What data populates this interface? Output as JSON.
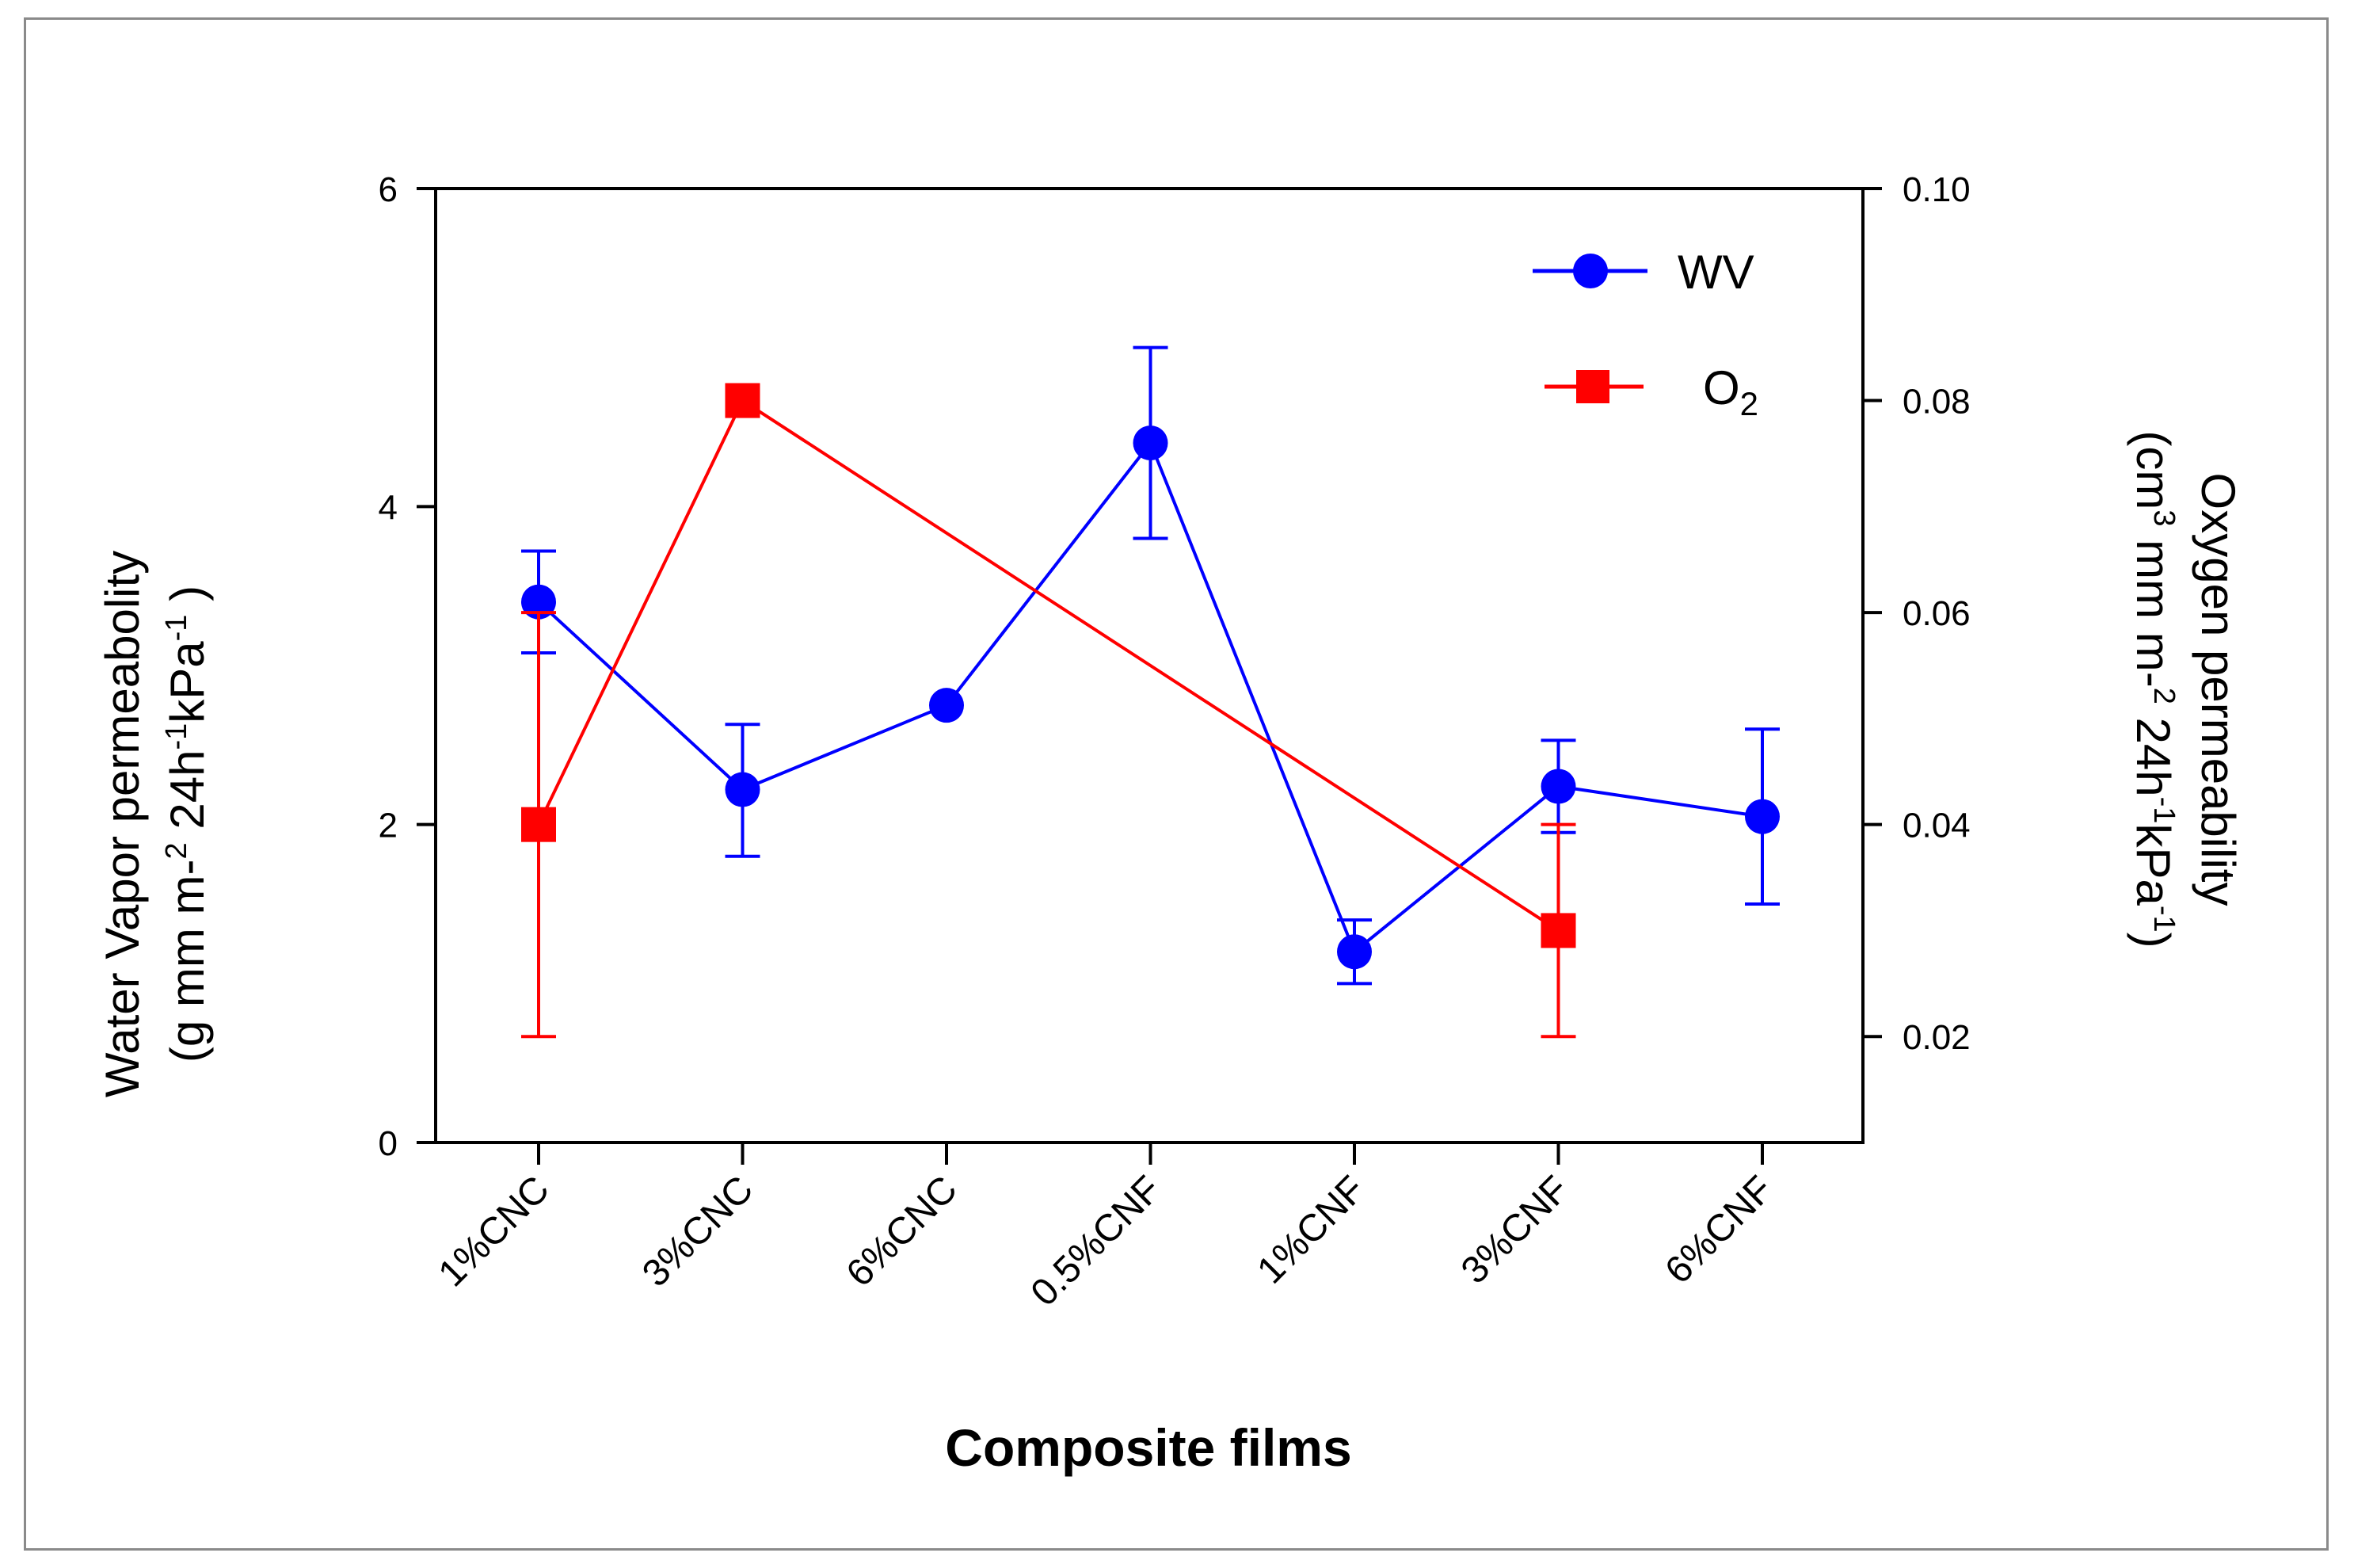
{
  "chart_data": {
    "type": "line",
    "title": "",
    "xlabel": "Composite films",
    "ylabel_left": {
      "line1": "Water Vapor permeabolity",
      "line2_parts": [
        "(g mm m-",
        "2",
        " 24h",
        "-1",
        "kPa",
        "-1",
        " )"
      ]
    },
    "ylabel_right": {
      "line1": "Oxygen permeability",
      "line2_parts": [
        "(cm",
        "3",
        " mm m-",
        "2",
        " 24h",
        "-1",
        "kPa",
        "-1",
        ")"
      ]
    },
    "categories": [
      "1%CNC",
      "3%CNC",
      "6%CNC",
      "0.5%CNF",
      "1%CNF",
      "3%CNF",
      "6%CNF"
    ],
    "y_left": {
      "range": [
        0,
        6
      ],
      "ticks": [
        "0",
        "2",
        "4",
        "6"
      ],
      "tick_values": [
        0,
        2,
        4,
        6
      ]
    },
    "y_right": {
      "range": [
        0.01,
        0.1
      ],
      "ticks": [
        "0.02",
        "0.04",
        "0.06",
        "0.08",
        "0.10"
      ],
      "tick_values": [
        0.02,
        0.04,
        0.06,
        0.08,
        0.1
      ]
    },
    "series": [
      {
        "name": "WV",
        "axis": "left",
        "color": "#0000ff",
        "marker": "circle",
        "points": [
          {
            "cat": 0,
            "y": 3.4,
            "err_low": 3.08,
            "err_high": 3.72
          },
          {
            "cat": 1,
            "y": 2.22,
            "err_low": 1.8,
            "err_high": 2.63
          },
          {
            "cat": 2,
            "y": 2.75,
            "err_low": null,
            "err_high": null
          },
          {
            "cat": 3,
            "y": 4.4,
            "err_low": 3.8,
            "err_high": 5.0
          },
          {
            "cat": 4,
            "y": 1.2,
            "err_low": 1.0,
            "err_high": 1.4
          },
          {
            "cat": 5,
            "y": 2.24,
            "err_low": 1.95,
            "err_high": 2.53
          },
          {
            "cat": 6,
            "y": 2.05,
            "err_low": 1.5,
            "err_high": 2.6
          }
        ]
      },
      {
        "name": "O2",
        "name_base": "O",
        "name_sub": "2",
        "axis": "right",
        "color": "#ff0000",
        "marker": "square",
        "points": [
          {
            "cat": 0,
            "y": 0.04,
            "err_low": 0.02,
            "err_high": 0.06
          },
          {
            "cat": 1,
            "y": 0.08,
            "err_low": null,
            "err_high": null
          },
          {
            "cat": 5,
            "y": 0.03,
            "err_low": 0.02,
            "err_high": 0.04
          }
        ]
      }
    ],
    "legend_position": "top-right"
  }
}
